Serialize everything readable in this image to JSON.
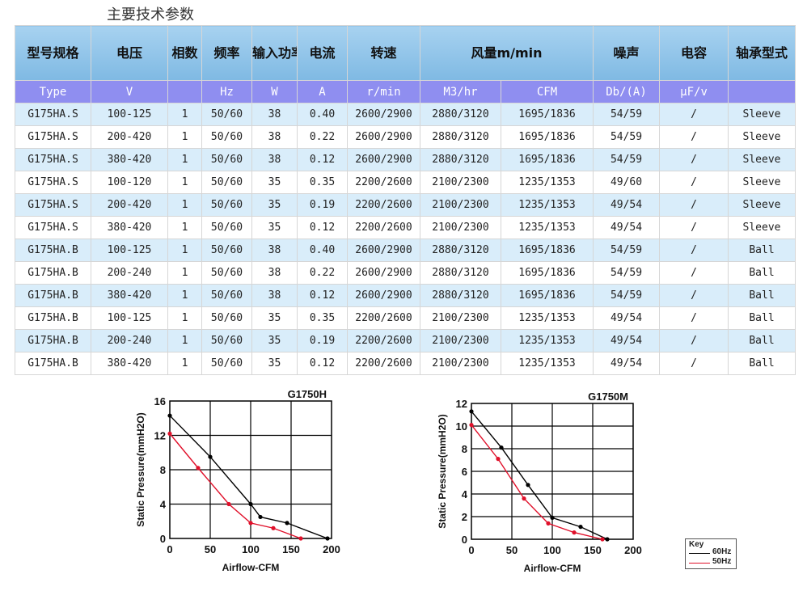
{
  "title": "主要技术参数",
  "table": {
    "header1": [
      "型号规格",
      "电压",
      "相数",
      "频率",
      "输入功率",
      "电流",
      "转速",
      "风量m/min",
      "噪声",
      "电容",
      "轴承型式"
    ],
    "header2": [
      "Type",
      "V",
      "",
      "Hz",
      "W",
      "A",
      "r/min",
      "M3/hr",
      "CFM",
      "Db/(A)",
      "μF/v",
      ""
    ],
    "rows": [
      [
        "G175HA.S",
        "100-125",
        "1",
        "50/60",
        "38",
        "0.40",
        "2600/2900",
        "2880/3120",
        "1695/1836",
        "54/59",
        "/",
        "Sleeve"
      ],
      [
        "G175HA.S",
        "200-420",
        "1",
        "50/60",
        "38",
        "0.22",
        "2600/2900",
        "2880/3120",
        "1695/1836",
        "54/59",
        "/",
        "Sleeve"
      ],
      [
        "G175HA.S",
        "380-420",
        "1",
        "50/60",
        "38",
        "0.12",
        "2600/2900",
        "2880/3120",
        "1695/1836",
        "54/59",
        "/",
        "Sleeve"
      ],
      [
        "G175HA.S",
        "100-120",
        "1",
        "50/60",
        "35",
        "0.35",
        "2200/2600",
        "2100/2300",
        "1235/1353",
        "49/60",
        "/",
        "Sleeve"
      ],
      [
        "G175HA.S",
        "200-420",
        "1",
        "50/60",
        "35",
        "0.19",
        "2200/2600",
        "2100/2300",
        "1235/1353",
        "49/54",
        "/",
        "Sleeve"
      ],
      [
        "G175HA.S",
        "380-420",
        "1",
        "50/60",
        "35",
        "0.12",
        "2200/2600",
        "2100/2300",
        "1235/1353",
        "49/54",
        "/",
        "Sleeve"
      ],
      [
        "G175HA.B",
        "100-125",
        "1",
        "50/60",
        "38",
        "0.40",
        "2600/2900",
        "2880/3120",
        "1695/1836",
        "54/59",
        "/",
        "Ball"
      ],
      [
        "G175HA.B",
        "200-240",
        "1",
        "50/60",
        "38",
        "0.22",
        "2600/2900",
        "2880/3120",
        "1695/1836",
        "54/59",
        "/",
        "Ball"
      ],
      [
        "G175HA.B",
        "380-420",
        "1",
        "50/60",
        "38",
        "0.12",
        "2600/2900",
        "2880/3120",
        "1695/1836",
        "54/59",
        "/",
        "Ball"
      ],
      [
        "G175HA.B",
        "100-125",
        "1",
        "50/60",
        "35",
        "0.35",
        "2200/2600",
        "2100/2300",
        "1235/1353",
        "49/54",
        "/",
        "Ball"
      ],
      [
        "G175HA.B",
        "200-240",
        "1",
        "50/60",
        "35",
        "0.19",
        "2200/2600",
        "2100/2300",
        "1235/1353",
        "49/54",
        "/",
        "Ball"
      ],
      [
        "G175HA.B",
        "380-420",
        "1",
        "50/60",
        "35",
        "0.12",
        "2200/2600",
        "2100/2300",
        "1235/1353",
        "49/54",
        "/",
        "Ball"
      ]
    ]
  },
  "chart_data": [
    {
      "type": "line",
      "title": "G1750H",
      "xlabel": "Airflow-CFM",
      "ylabel": "Static Pressure(mmH2O)",
      "xlim": [
        0,
        200
      ],
      "ylim": [
        0,
        16
      ],
      "xticks": [
        "0",
        "50",
        "100",
        "150",
        "200"
      ],
      "yticks": [
        "0",
        "4",
        "8",
        "12",
        "16"
      ],
      "grid": true,
      "series": [
        {
          "name": "60Hz",
          "color": "#000000",
          "x": [
            0,
            50,
            100,
            112,
            145,
            195
          ],
          "y": [
            14.3,
            9.5,
            4.0,
            2.5,
            1.8,
            0
          ]
        },
        {
          "name": "50Hz",
          "color": "#e0102a",
          "x": [
            0,
            35,
            73,
            100,
            128,
            162
          ],
          "y": [
            12.2,
            8.2,
            4.0,
            1.8,
            1.2,
            0
          ]
        }
      ]
    },
    {
      "type": "line",
      "title": "G1750M",
      "xlabel": "Airflow-CFM",
      "ylabel": "Static Pressure(mmH2O)",
      "xlim": [
        0,
        200
      ],
      "ylim": [
        0,
        12
      ],
      "xticks": [
        "0",
        "50",
        "100",
        "150",
        "200"
      ],
      "yticks": [
        "0",
        "2",
        "4",
        "6",
        "8",
        "10",
        "12"
      ],
      "grid": true,
      "series": [
        {
          "name": "60Hz",
          "color": "#000000",
          "x": [
            0,
            37,
            70,
            100,
            135,
            168
          ],
          "y": [
            11.3,
            8.1,
            4.8,
            1.9,
            1.1,
            0
          ]
        },
        {
          "name": "50Hz",
          "color": "#e0102a",
          "x": [
            0,
            33,
            65,
            95,
            127,
            162
          ],
          "y": [
            10.1,
            7.1,
            3.6,
            1.4,
            0.6,
            0
          ]
        }
      ],
      "legend": {
        "title": "Key",
        "entries": [
          "60Hz",
          "50Hz"
        ]
      }
    }
  ]
}
